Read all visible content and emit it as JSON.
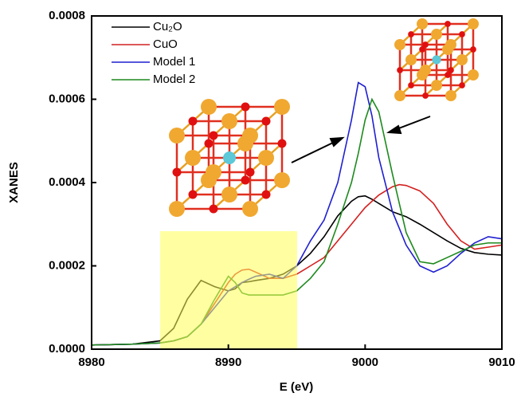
{
  "chart_data": {
    "type": "line",
    "xlabel": "E (eV)",
    "ylabel": "XANES",
    "x": [
      8980,
      8983,
      8985,
      8986,
      8987,
      8988,
      8989,
      8990,
      8990.5,
      8991,
      8991.5,
      8992,
      8993,
      8994,
      8995,
      8996,
      8997,
      8998,
      8999,
      8999.5,
      9000,
      9000.5,
      9001,
      9002,
      9002.5,
      9003,
      9004,
      9005,
      9006,
      9007,
      9008,
      9009,
      9010
    ],
    "series": [
      {
        "name": "Cu₂O",
        "color": "#000000",
        "values": [
          1e-05,
          1.2e-05,
          2e-05,
          5e-05,
          0.00012,
          0.000165,
          0.00015,
          0.00014,
          0.000145,
          0.00016,
          0.000162,
          0.000165,
          0.00017,
          0.00018,
          0.0002,
          0.00023,
          0.00027,
          0.00032,
          0.000355,
          0.000366,
          0.000368,
          0.00036,
          0.00035,
          0.00033,
          0.000324,
          0.000318,
          0.0003,
          0.00028,
          0.00026,
          0.000242,
          0.000232,
          0.000228,
          0.000226
        ]
      },
      {
        "name": "CuO",
        "color": "#d42020",
        "values": [
          1e-05,
          1.2e-05,
          1.5e-05,
          2e-05,
          3e-05,
          6e-05,
          0.00011,
          0.00016,
          0.00018,
          0.00019,
          0.000192,
          0.000185,
          0.00017,
          0.00017,
          0.00018,
          0.0002,
          0.00022,
          0.00026,
          0.0003,
          0.00032,
          0.00034,
          0.000355,
          0.00037,
          0.00039,
          0.000395,
          0.000393,
          0.00038,
          0.00035,
          0.0003,
          0.00026,
          0.00024,
          0.000245,
          0.00025
        ]
      },
      {
        "name": "Model 1",
        "color": "#1f1fd0",
        "values": [
          1e-05,
          1.2e-05,
          1.5e-05,
          2e-05,
          3e-05,
          6e-05,
          0.0001,
          0.00014,
          0.00015,
          0.00016,
          0.000168,
          0.000175,
          0.00018,
          0.00017,
          0.0002,
          0.00026,
          0.00031,
          0.0004,
          0.00055,
          0.00064,
          0.00063,
          0.00056,
          0.00046,
          0.00033,
          0.00029,
          0.00025,
          0.0002,
          0.000185,
          0.0002,
          0.00023,
          0.000255,
          0.00027,
          0.000265
        ]
      },
      {
        "name": "Model 2",
        "color": "#1e8a1e",
        "values": [
          1e-05,
          1.2e-05,
          1.5e-05,
          2e-05,
          3e-05,
          6e-05,
          0.00012,
          0.000175,
          0.00016,
          0.000135,
          0.00013,
          0.00013,
          0.00013,
          0.00013,
          0.00014,
          0.00017,
          0.00021,
          0.0003,
          0.0004,
          0.00047,
          0.00055,
          0.0006,
          0.00057,
          0.00042,
          0.00035,
          0.00028,
          0.00021,
          0.000205,
          0.00022,
          0.000235,
          0.00025,
          0.000255,
          0.000255
        ]
      }
    ],
    "xlim": [
      8980,
      9010
    ],
    "xticks": [
      8980,
      8990,
      9000,
      9010
    ],
    "ylim": [
      0,
      0.0008
    ],
    "yticks": [
      {
        "value": 0,
        "label": "0.0000"
      },
      0.0002,
      0.0004,
      0.0006,
      0.0008
    ],
    "grid": false,
    "legend": "upper left"
  }
}
